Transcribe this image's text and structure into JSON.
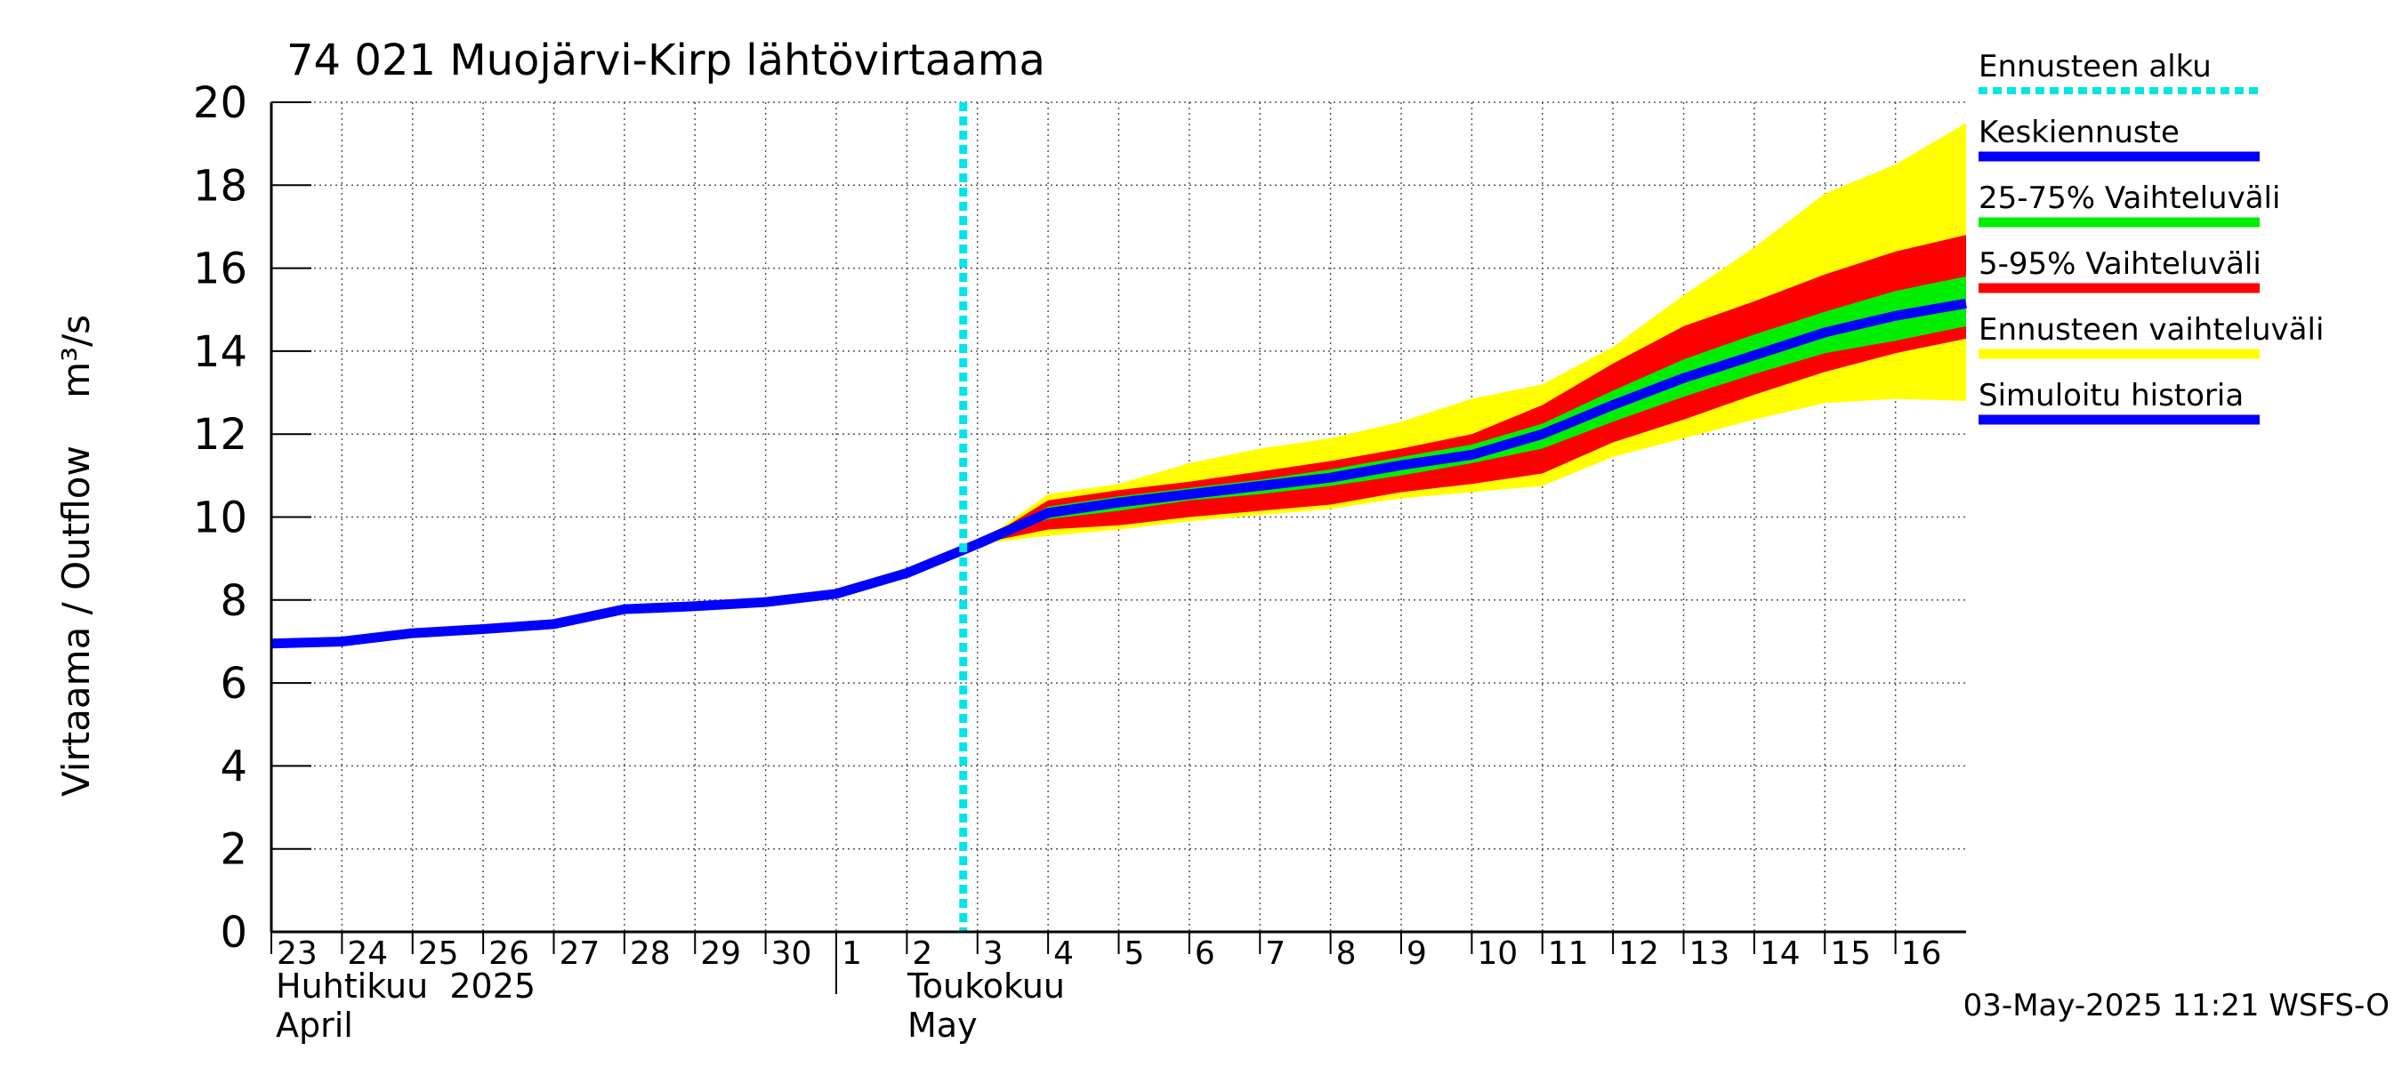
{
  "chart_data": {
    "type": "area",
    "title": "74 021 Muojärvi-Kirp lähtövirtaama",
    "ylabel": "Virtaama / Outflow    m³/s",
    "ylim": [
      0,
      20
    ],
    "yticks": [
      0,
      2,
      4,
      6,
      8,
      10,
      12,
      14,
      16,
      18,
      20
    ],
    "grid": true,
    "legend_position": "right",
    "x_day_labels": [
      "23",
      "24",
      "25",
      "26",
      "27",
      "28",
      "29",
      "30",
      "1",
      "2",
      "3",
      "4",
      "5",
      "6",
      "7",
      "8",
      "9",
      "10",
      "11",
      "12",
      "13",
      "14",
      "15",
      "16"
    ],
    "month_labels": [
      {
        "line1": "Huhtikuu  2025",
        "line2": "April"
      },
      {
        "line1": "Toukokuu",
        "line2": "May"
      }
    ],
    "x_range_days": [
      0,
      24
    ],
    "forecast_start_day": 10,
    "colors": {
      "forecast_start": "#00e5e5",
      "mean": "#0000ff",
      "band_25_75": "#00ee00",
      "band_5_95": "#ff0000",
      "band_full": "#ffff00",
      "history": "#0000ff"
    },
    "history": {
      "name": "Simuloitu historia",
      "x": [
        0,
        1,
        2,
        3,
        4,
        5,
        6,
        7,
        8,
        9,
        10
      ],
      "values": [
        6.95,
        7.0,
        7.2,
        7.3,
        7.42,
        7.78,
        7.85,
        7.95,
        8.15,
        8.65,
        9.35
      ]
    },
    "forecast_x": [
      10,
      11,
      12,
      13,
      14,
      15,
      16,
      17,
      18,
      19,
      20,
      21,
      22,
      23,
      24
    ],
    "series": [
      {
        "name": "Keskiennuste",
        "values": [
          9.35,
          10.1,
          10.35,
          10.55,
          10.75,
          10.95,
          11.25,
          11.5,
          12.0,
          12.7,
          13.35,
          13.9,
          14.45,
          14.85,
          15.15
        ]
      },
      {
        "name": "Ennusteen vaihteluväli",
        "low": [
          9.35,
          9.55,
          9.7,
          9.9,
          10.05,
          10.2,
          10.45,
          10.6,
          10.75,
          11.45,
          11.9,
          12.35,
          12.75,
          12.85,
          12.8
        ],
        "high": [
          9.35,
          10.55,
          10.8,
          11.3,
          11.65,
          11.9,
          12.3,
          12.85,
          13.2,
          14.1,
          15.35,
          16.5,
          17.8,
          18.5,
          19.5
        ]
      },
      {
        "name": "5-95% Vaihteluväli",
        "low": [
          9.35,
          9.7,
          9.8,
          10.0,
          10.15,
          10.3,
          10.6,
          10.8,
          11.05,
          11.8,
          12.35,
          12.95,
          13.5,
          13.95,
          14.3
        ],
        "high": [
          9.35,
          10.4,
          10.65,
          10.85,
          11.1,
          11.35,
          11.65,
          12.0,
          12.7,
          13.7,
          14.6,
          15.2,
          15.85,
          16.4,
          16.8
        ]
      },
      {
        "name": "25-75% Vaihteluväli",
        "low": [
          9.35,
          9.95,
          10.15,
          10.4,
          10.55,
          10.75,
          11.0,
          11.3,
          11.65,
          12.3,
          12.9,
          13.45,
          13.95,
          14.25,
          14.6
        ],
        "high": [
          9.35,
          10.25,
          10.5,
          10.7,
          10.9,
          11.15,
          11.45,
          11.75,
          12.25,
          13.05,
          13.8,
          14.4,
          14.95,
          15.45,
          15.8
        ]
      }
    ],
    "legend": [
      {
        "label": "Ennusteen alku",
        "color": "#00e5e5",
        "style": "dotted"
      },
      {
        "label": "Keskiennuste",
        "color": "#0000ff",
        "style": "solid"
      },
      {
        "label": "25-75% Vaihteluväli",
        "color": "#00ee00",
        "style": "solid"
      },
      {
        "label": "5-95% Vaihteluväli",
        "color": "#ff0000",
        "style": "solid"
      },
      {
        "label": "Ennusteen vaihteluväli",
        "color": "#ffff00",
        "style": "solid"
      },
      {
        "label": "Simuloitu historia",
        "color": "#0000ff",
        "style": "solid"
      }
    ],
    "footer": "03-May-2025 11:21 WSFS-O"
  }
}
